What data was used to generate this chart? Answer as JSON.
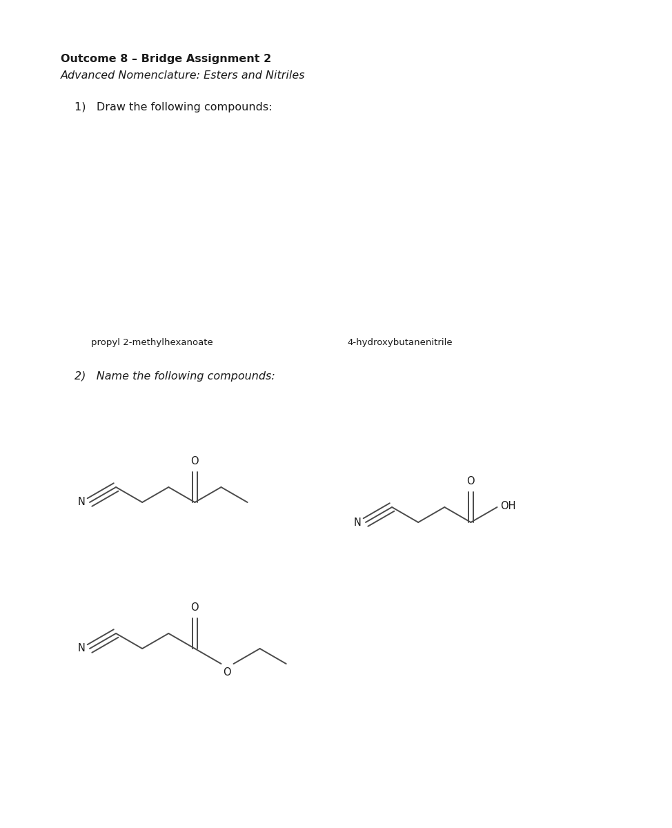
{
  "title_bold": "Outcome 8 – Bridge Assignment 2",
  "title_italic": "Advanced Nomenclature: Esters and Nitriles",
  "q1_text": "1)   Draw the following compounds:",
  "q2_text": "2)   Name the following compounds:",
  "label1": "propyl 2-methylhexanoate",
  "label2": "4-hydroxybutanenitrile",
  "background": "#ffffff",
  "line_color": "#4a4a4a",
  "text_color": "#1a1a1a",
  "font_size_title": 11.5,
  "font_size_label": 9.5,
  "font_size_atom": 10.5
}
